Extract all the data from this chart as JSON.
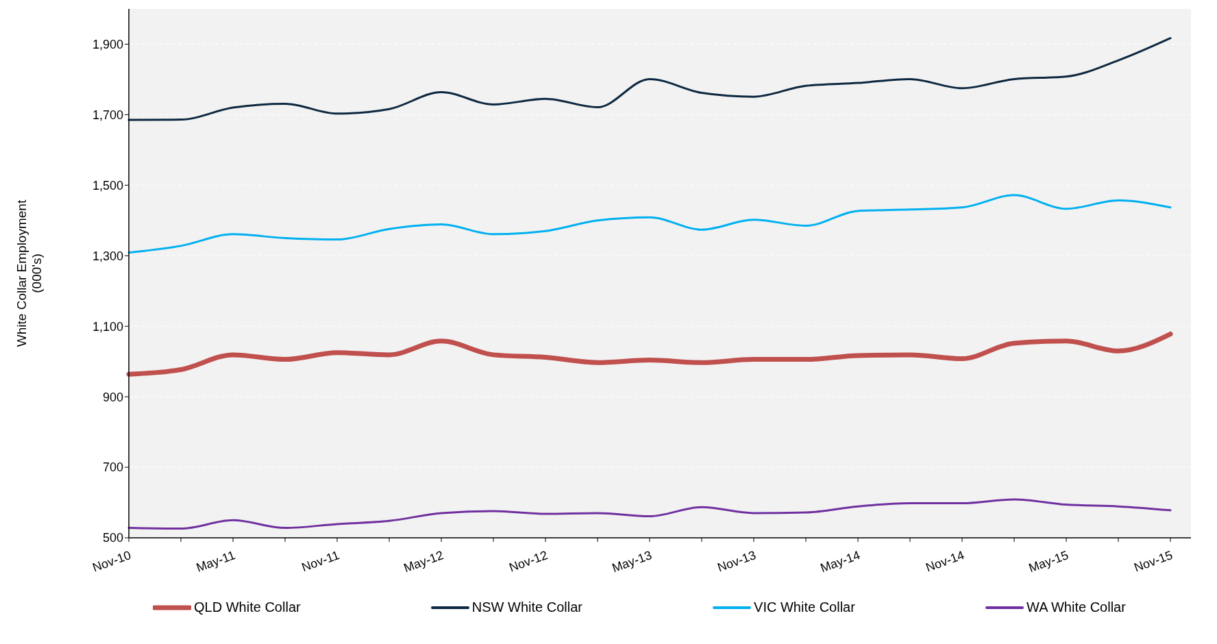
{
  "chart_data": {
    "type": "line",
    "ylabel": "White Collar Employment\n(000's)",
    "categories": [
      "Nov-10",
      null,
      "May-11",
      null,
      "Nov-11",
      null,
      "May-12",
      null,
      "Nov-12",
      null,
      "May-13",
      null,
      "Nov-13",
      null,
      "May-14",
      null,
      "Nov-14",
      null,
      "May-15",
      null,
      "Nov-15"
    ],
    "series": [
      {
        "name": "QLD White Collar",
        "color": "#c0504d",
        "values": [
          964,
          977,
          1019,
          1006,
          1025,
          1019,
          1058,
          1019,
          1012,
          997,
          1004,
          997,
          1006,
          1006,
          1017,
          1019,
          1008,
          1052,
          1058,
          1030,
          1078
        ]
      },
      {
        "name": "NSW White Collar",
        "color": "#0d2840",
        "values": [
          1685,
          1686,
          1720,
          1731,
          1703,
          1716,
          1764,
          1729,
          1745,
          1721,
          1801,
          1762,
          1751,
          1782,
          1790,
          1801,
          1775,
          1801,
          1808,
          1854,
          1917
        ]
      },
      {
        "name": "VIC White Collar",
        "color": "#00b0f0",
        "values": [
          1309,
          1328,
          1361,
          1350,
          1346,
          1376,
          1389,
          1361,
          1370,
          1400,
          1409,
          1374,
          1402,
          1385,
          1427,
          1431,
          1437,
          1472,
          1433,
          1457,
          1437
        ]
      },
      {
        "name": "WA White Collar",
        "color": "#7030a0",
        "values": [
          528,
          526,
          550,
          528,
          539,
          548,
          570,
          576,
          568,
          570,
          561,
          587,
          570,
          572,
          589,
          598,
          598,
          609,
          594,
          589,
          578
        ]
      }
    ],
    "ylim": [
      500,
      2000
    ],
    "yticks": [
      500,
      700,
      900,
      {
        "value": 1100,
        "label": "1,100"
      },
      {
        "value": 1300,
        "label": "1,300"
      },
      {
        "value": 1500,
        "label": "1,500"
      },
      {
        "value": 1700,
        "label": "1,700"
      },
      {
        "value": 1900,
        "label": "1,900"
      }
    ],
    "grid": "y",
    "legend": "bottom",
    "marker": "none",
    "line_style": "solid"
  }
}
